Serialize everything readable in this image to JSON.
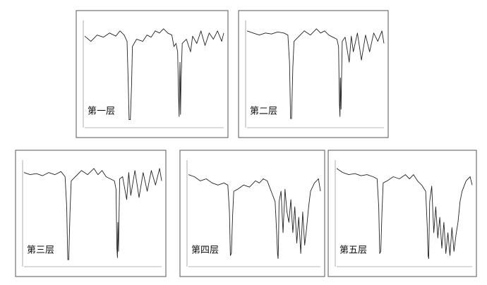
{
  "chart_data": [
    {
      "type": "line",
      "title": "第一层",
      "color": "#222222",
      "xlim": [
        4000,
        650
      ],
      "ylim": [
        0,
        100
      ],
      "x": [
        4000,
        3850,
        3700,
        3550,
        3400,
        3250,
        3150,
        3050,
        2980,
        2950,
        2930,
        2900,
        2870,
        2850,
        2750,
        2600,
        2500,
        2400,
        2300,
        2200,
        2100,
        2000,
        1900,
        1850,
        1800,
        1760,
        1740,
        1725,
        1715,
        1705,
        1690,
        1680,
        1650,
        1550,
        1450,
        1400,
        1300,
        1200,
        1100,
        1000,
        900,
        800,
        700,
        650
      ],
      "values": [
        85,
        80,
        86,
        84,
        88,
        85,
        90,
        86,
        80,
        40,
        5,
        5,
        40,
        75,
        82,
        80,
        86,
        84,
        90,
        88,
        92,
        88,
        86,
        75,
        78,
        70,
        30,
        8,
        40,
        60,
        10,
        40,
        78,
        82,
        70,
        85,
        78,
        90,
        76,
        88,
        82,
        90,
        80,
        88
      ]
    },
    {
      "type": "line",
      "title": "第二层",
      "color": "#222222",
      "xlim": [
        4000,
        650
      ],
      "ylim": [
        0,
        100
      ],
      "x": [
        4000,
        3850,
        3700,
        3550,
        3400,
        3250,
        3100,
        3000,
        2960,
        2935,
        2910,
        2880,
        2850,
        2750,
        2600,
        2450,
        2300,
        2200,
        2100,
        2000,
        1900,
        1800,
        1760,
        1740,
        1725,
        1715,
        1700,
        1690,
        1670,
        1600,
        1500,
        1450,
        1400,
        1300,
        1200,
        1100,
        1000,
        900,
        800,
        700,
        650
      ],
      "values": [
        90,
        88,
        86,
        88,
        87,
        89,
        88,
        86,
        60,
        6,
        6,
        55,
        80,
        84,
        90,
        86,
        92,
        88,
        90,
        86,
        84,
        82,
        75,
        20,
        8,
        45,
        15,
        40,
        80,
        84,
        60,
        85,
        70,
        88,
        62,
        86,
        70,
        88,
        80,
        90,
        78
      ]
    },
    {
      "type": "line",
      "title": "第三层",
      "color": "#222222",
      "xlim": [
        4000,
        650
      ],
      "ylim": [
        0,
        100
      ],
      "x": [
        4000,
        3850,
        3700,
        3550,
        3400,
        3250,
        3100,
        3000,
        2960,
        2935,
        2910,
        2880,
        2850,
        2750,
        2600,
        2450,
        2300,
        2200,
        2100,
        2000,
        1900,
        1800,
        1760,
        1740,
        1725,
        1715,
        1700,
        1690,
        1670,
        1600,
        1500,
        1450,
        1400,
        1300,
        1200,
        1100,
        1000,
        900,
        800,
        700,
        650
      ],
      "values": [
        88,
        86,
        87,
        85,
        88,
        86,
        89,
        84,
        55,
        4,
        4,
        50,
        80,
        84,
        90,
        86,
        92,
        86,
        90,
        84,
        82,
        80,
        72,
        15,
        6,
        40,
        12,
        40,
        82,
        84,
        62,
        88,
        66,
        90,
        64,
        88,
        70,
        90,
        76,
        92,
        80
      ]
    },
    {
      "type": "line",
      "title": "第四层",
      "color": "#222222",
      "xlim": [
        4000,
        650
      ],
      "ylim": [
        0,
        100
      ],
      "x": [
        4000,
        3850,
        3700,
        3550,
        3400,
        3250,
        3100,
        3000,
        2960,
        2935,
        2910,
        2880,
        2850,
        2750,
        2600,
        2450,
        2300,
        2200,
        2100,
        2000,
        1900,
        1800,
        1760,
        1740,
        1725,
        1715,
        1700,
        1650,
        1600,
        1550,
        1500,
        1450,
        1400,
        1350,
        1300,
        1250,
        1200,
        1150,
        1100,
        1050,
        1000,
        950,
        900,
        800,
        700,
        650
      ],
      "values": [
        86,
        84,
        80,
        82,
        78,
        76,
        78,
        76,
        50,
        8,
        10,
        45,
        70,
        72,
        76,
        74,
        80,
        78,
        82,
        80,
        70,
        60,
        30,
        10,
        5,
        20,
        60,
        70,
        30,
        72,
        50,
        40,
        62,
        30,
        55,
        20,
        45,
        10,
        50,
        18,
        35,
        55,
        70,
        78,
        82,
        70
      ]
    },
    {
      "type": "line",
      "title": "第五层",
      "color": "#222222",
      "xlim": [
        4000,
        650
      ],
      "ylim": [
        0,
        100
      ],
      "x": [
        4000,
        3850,
        3700,
        3550,
        3400,
        3250,
        3100,
        3000,
        2960,
        2935,
        2910,
        2880,
        2850,
        2750,
        2600,
        2450,
        2300,
        2200,
        2100,
        2000,
        1900,
        1800,
        1760,
        1740,
        1725,
        1715,
        1700,
        1650,
        1600,
        1550,
        1500,
        1450,
        1400,
        1350,
        1300,
        1250,
        1200,
        1150,
        1100,
        1050,
        1000,
        950,
        900,
        800,
        700,
        650
      ],
      "values": [
        92,
        88,
        86,
        87,
        85,
        86,
        84,
        82,
        55,
        10,
        12,
        50,
        78,
        80,
        84,
        82,
        86,
        82,
        86,
        80,
        76,
        70,
        35,
        8,
        5,
        30,
        60,
        75,
        30,
        55,
        25,
        45,
        15,
        40,
        10,
        30,
        8,
        35,
        12,
        28,
        40,
        60,
        70,
        80,
        84,
        76
      ]
    }
  ]
}
